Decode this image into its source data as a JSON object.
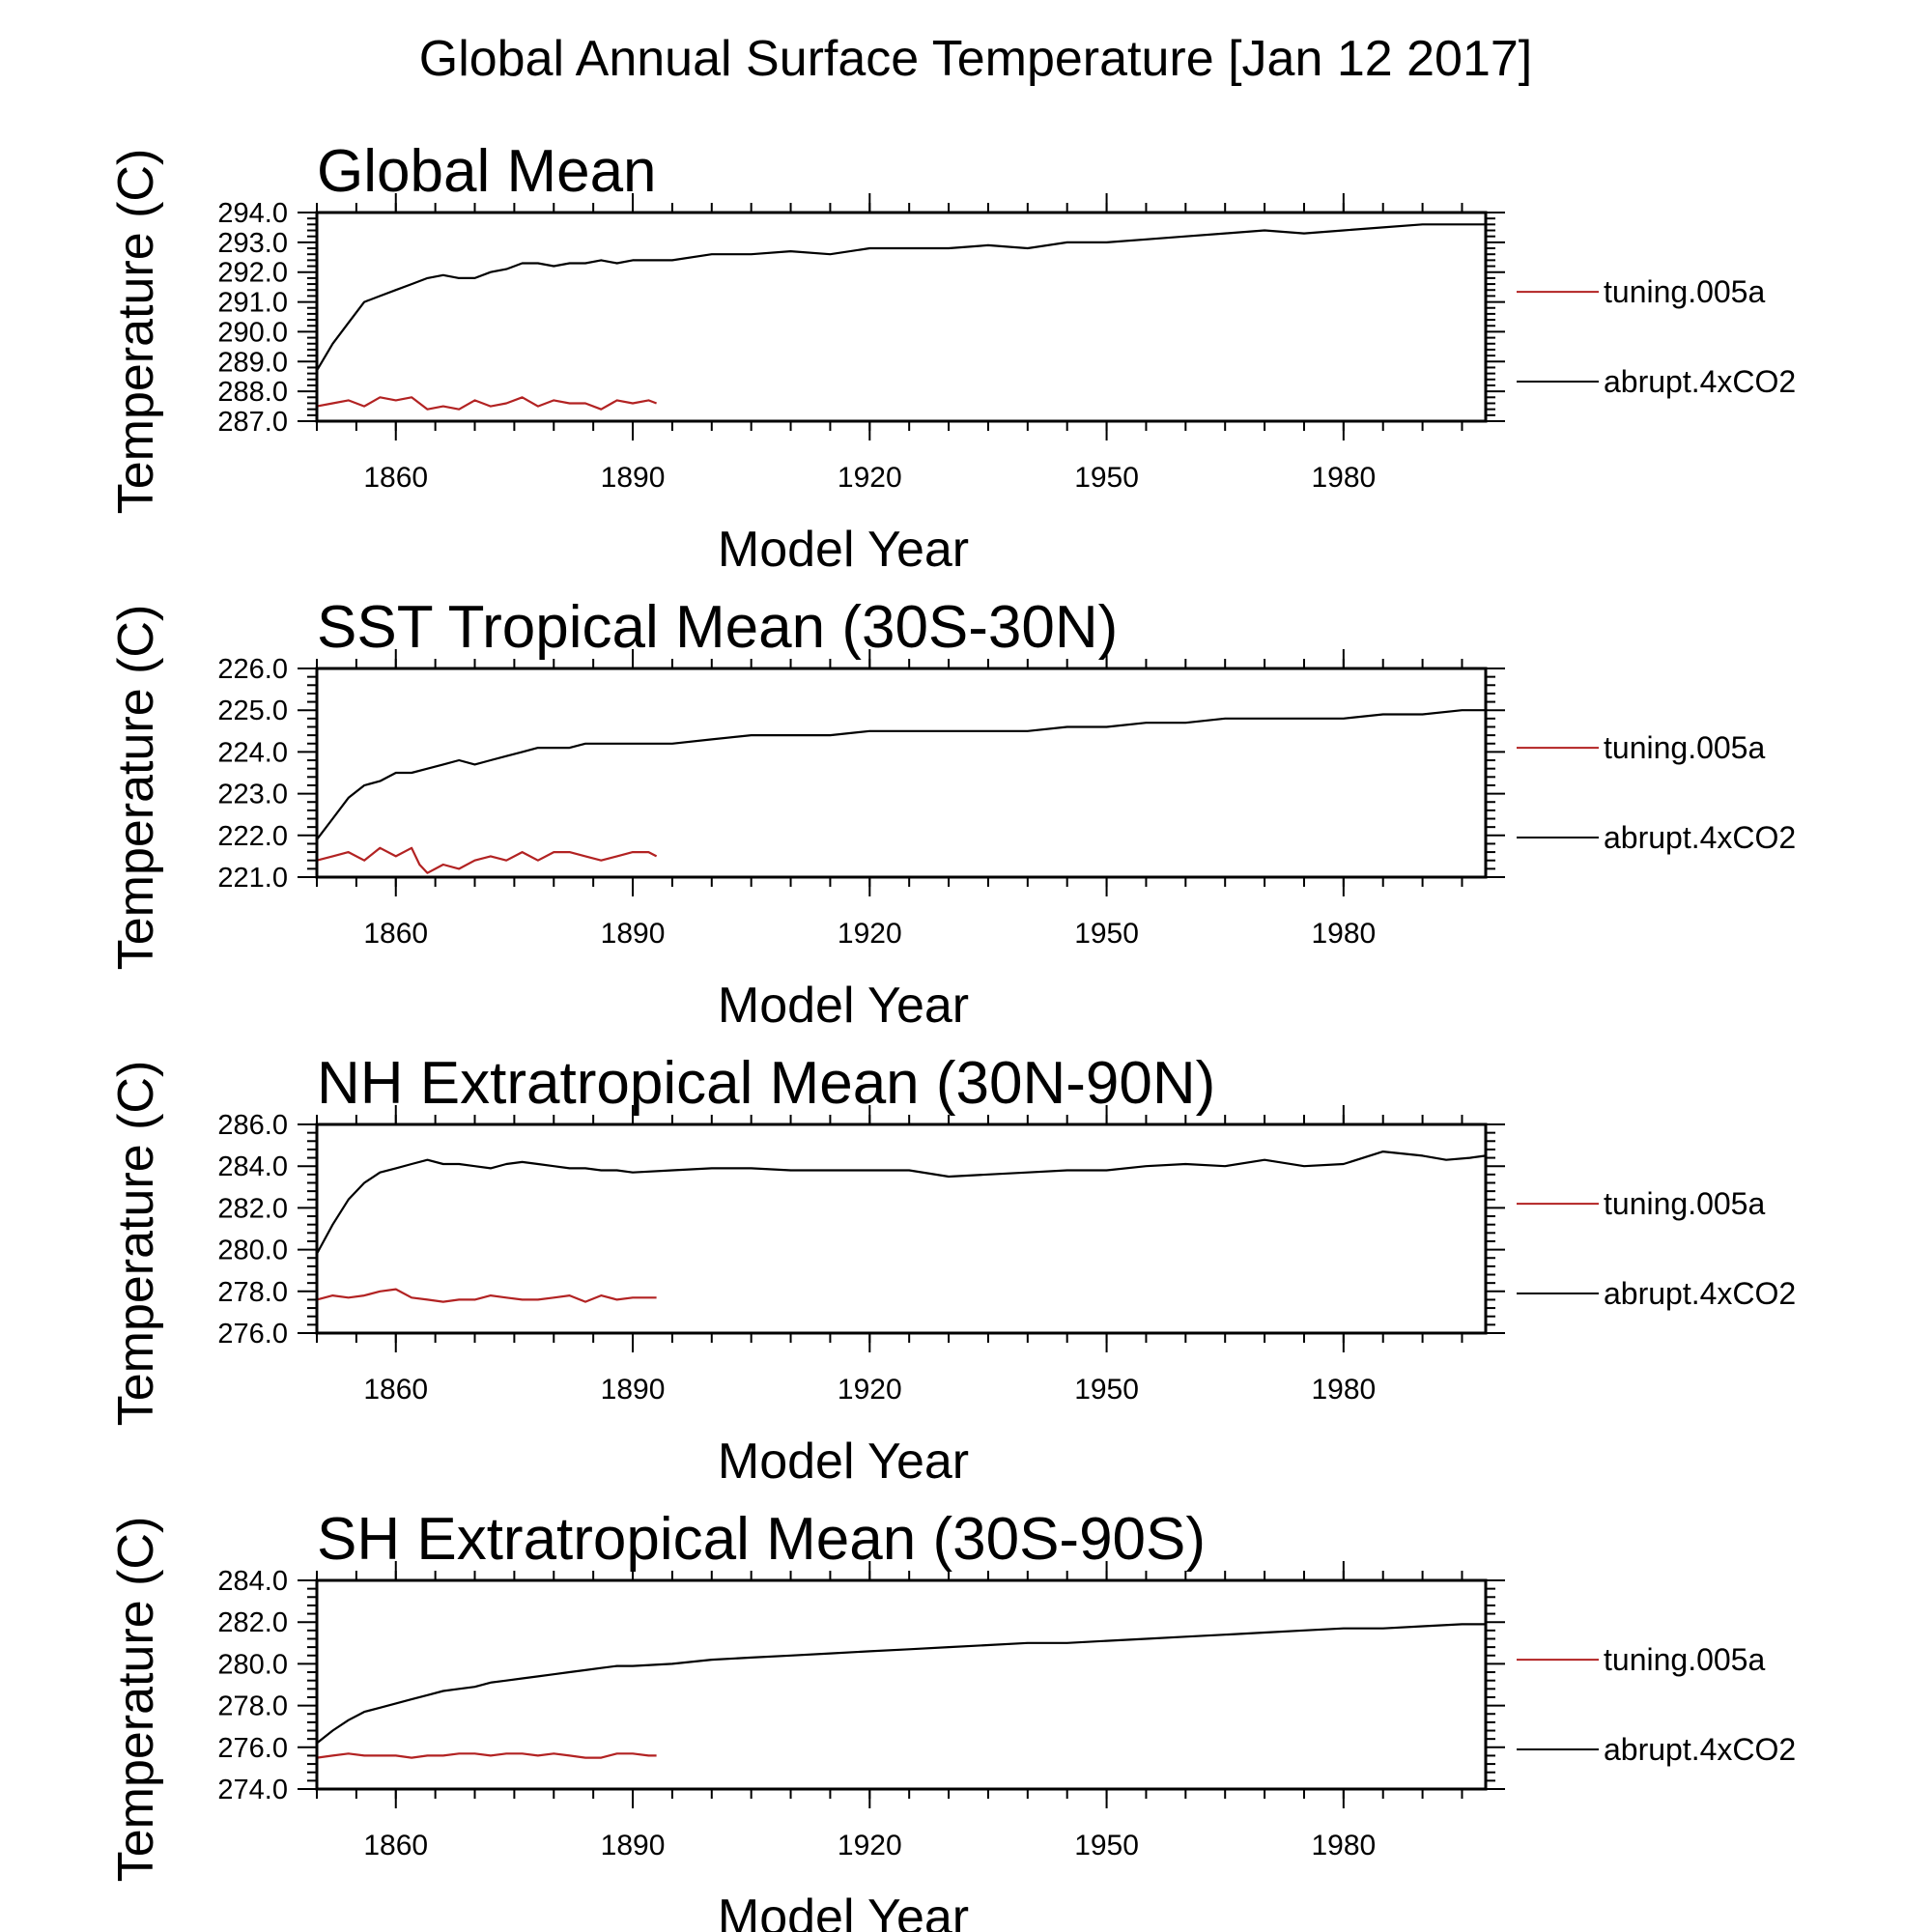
{
  "figure": {
    "title": "Global Annual Surface Temperature [Jan 12 2017]"
  },
  "chart_data": [
    {
      "type": "line",
      "title": "Global Mean",
      "xlabel": "Model Year",
      "ylabel": "Temperature (C)",
      "xlim": [
        1850,
        1998
      ],
      "ylim": [
        287.0,
        294.0
      ],
      "xticks": [
        1860,
        1890,
        1920,
        1950,
        1980
      ],
      "xtick_labels": [
        "1860",
        "1890",
        "1920",
        "1950",
        "1980"
      ],
      "yticks": [
        287.0,
        288.0,
        289.0,
        290.0,
        291.0,
        292.0,
        293.0,
        294.0
      ],
      "ytick_labels": [
        "287.0",
        "288.0",
        "289.0",
        "290.0",
        "291.0",
        "292.0",
        "293.0",
        "294.0"
      ],
      "legend_position": "right",
      "series": [
        {
          "name": "tuning.005a",
          "color": "#b22222",
          "x": [
            1850,
            1852,
            1854,
            1856,
            1858,
            1860,
            1862,
            1864,
            1866,
            1868,
            1870,
            1872,
            1874,
            1876,
            1878,
            1880,
            1882,
            1884,
            1886,
            1888,
            1890,
            1892,
            1893
          ],
          "y": [
            287.5,
            287.6,
            287.7,
            287.5,
            287.8,
            287.7,
            287.8,
            287.4,
            287.5,
            287.4,
            287.7,
            287.5,
            287.6,
            287.8,
            287.5,
            287.7,
            287.6,
            287.6,
            287.4,
            287.7,
            287.6,
            287.7,
            287.6
          ]
        },
        {
          "name": "abrupt.4xCO2",
          "color": "#000000",
          "x": [
            1850,
            1852,
            1854,
            1856,
            1858,
            1860,
            1862,
            1864,
            1866,
            1868,
            1870,
            1872,
            1874,
            1876,
            1878,
            1880,
            1882,
            1884,
            1886,
            1888,
            1890,
            1895,
            1900,
            1905,
            1910,
            1915,
            1920,
            1925,
            1930,
            1935,
            1940,
            1945,
            1950,
            1955,
            1960,
            1965,
            1970,
            1975,
            1980,
            1985,
            1990,
            1995,
            1998
          ],
          "y": [
            288.7,
            289.6,
            290.3,
            291.0,
            291.2,
            291.4,
            291.6,
            291.8,
            291.9,
            291.8,
            291.8,
            292.0,
            292.1,
            292.3,
            292.3,
            292.2,
            292.3,
            292.3,
            292.4,
            292.3,
            292.4,
            292.4,
            292.6,
            292.6,
            292.7,
            292.6,
            292.8,
            292.8,
            292.8,
            292.9,
            292.8,
            293.0,
            293.0,
            293.1,
            293.2,
            293.3,
            293.4,
            293.3,
            293.4,
            293.5,
            293.6,
            293.6,
            293.6
          ]
        }
      ]
    },
    {
      "type": "line",
      "title": "SST Tropical Mean (30S-30N)",
      "xlabel": "Model Year",
      "ylabel": "Temperature (C)",
      "xlim": [
        1850,
        1998
      ],
      "ylim": [
        221.0,
        226.0
      ],
      "xticks": [
        1860,
        1890,
        1920,
        1950,
        1980
      ],
      "xtick_labels": [
        "1860",
        "1890",
        "1920",
        "1950",
        "1980"
      ],
      "yticks": [
        221.0,
        222.0,
        223.0,
        224.0,
        225.0,
        226.0
      ],
      "ytick_labels": [
        "221.0",
        "222.0",
        "223.0",
        "224.0",
        "225.0",
        "226.0"
      ],
      "legend_position": "right",
      "series": [
        {
          "name": "tuning.005a",
          "color": "#b22222",
          "x": [
            1850,
            1852,
            1854,
            1856,
            1858,
            1860,
            1862,
            1863,
            1864,
            1866,
            1868,
            1870,
            1872,
            1874,
            1876,
            1878,
            1880,
            1882,
            1884,
            1886,
            1888,
            1890,
            1892,
            1893
          ],
          "y": [
            221.4,
            221.5,
            221.6,
            221.4,
            221.7,
            221.5,
            221.7,
            221.3,
            221.1,
            221.3,
            221.2,
            221.4,
            221.5,
            221.4,
            221.6,
            221.4,
            221.6,
            221.6,
            221.5,
            221.4,
            221.5,
            221.6,
            221.6,
            221.5
          ]
        },
        {
          "name": "abrupt.4xCO2",
          "color": "#000000",
          "x": [
            1850,
            1852,
            1854,
            1856,
            1858,
            1860,
            1862,
            1864,
            1866,
            1868,
            1870,
            1872,
            1874,
            1876,
            1878,
            1880,
            1882,
            1884,
            1886,
            1888,
            1890,
            1895,
            1900,
            1905,
            1910,
            1915,
            1920,
            1925,
            1930,
            1935,
            1940,
            1945,
            1950,
            1955,
            1960,
            1965,
            1970,
            1975,
            1980,
            1985,
            1990,
            1995,
            1998
          ],
          "y": [
            221.9,
            222.4,
            222.9,
            223.2,
            223.3,
            223.5,
            223.5,
            223.6,
            223.7,
            223.8,
            223.7,
            223.8,
            223.9,
            224.0,
            224.1,
            224.1,
            224.1,
            224.2,
            224.2,
            224.2,
            224.2,
            224.2,
            224.3,
            224.4,
            224.4,
            224.4,
            224.5,
            224.5,
            224.5,
            224.5,
            224.5,
            224.6,
            224.6,
            224.7,
            224.7,
            224.8,
            224.8,
            224.8,
            224.8,
            224.9,
            224.9,
            225.0,
            225.0
          ]
        }
      ]
    },
    {
      "type": "line",
      "title": "NH Extratropical Mean (30N-90N)",
      "xlabel": "Model Year",
      "ylabel": "Temperature (C)",
      "xlim": [
        1850,
        1998
      ],
      "ylim": [
        276.0,
        286.0
      ],
      "xticks": [
        1860,
        1890,
        1920,
        1950,
        1980
      ],
      "xtick_labels": [
        "1860",
        "1890",
        "1920",
        "1950",
        "1980"
      ],
      "yticks": [
        276.0,
        278.0,
        280.0,
        282.0,
        284.0,
        286.0
      ],
      "ytick_labels": [
        "276.0",
        "278.0",
        "280.0",
        "282.0",
        "284.0",
        "286.0"
      ],
      "legend_position": "right",
      "series": [
        {
          "name": "tuning.005a",
          "color": "#b22222",
          "x": [
            1850,
            1852,
            1854,
            1856,
            1858,
            1860,
            1862,
            1864,
            1866,
            1868,
            1870,
            1872,
            1874,
            1876,
            1878,
            1880,
            1882,
            1884,
            1886,
            1888,
            1890,
            1892,
            1893
          ],
          "y": [
            277.6,
            277.8,
            277.7,
            277.8,
            278.0,
            278.1,
            277.7,
            277.6,
            277.5,
            277.6,
            277.6,
            277.8,
            277.7,
            277.6,
            277.6,
            277.7,
            277.8,
            277.5,
            277.8,
            277.6,
            277.7,
            277.7,
            277.7
          ]
        },
        {
          "name": "abrupt.4xCO2",
          "color": "#000000",
          "x": [
            1850,
            1852,
            1854,
            1856,
            1858,
            1860,
            1862,
            1864,
            1866,
            1868,
            1870,
            1872,
            1874,
            1876,
            1878,
            1880,
            1882,
            1884,
            1886,
            1888,
            1890,
            1895,
            1900,
            1905,
            1910,
            1915,
            1920,
            1925,
            1930,
            1935,
            1940,
            1945,
            1950,
            1955,
            1960,
            1965,
            1970,
            1975,
            1980,
            1985,
            1990,
            1993,
            1996,
            1998
          ],
          "y": [
            279.8,
            281.2,
            282.4,
            283.2,
            283.7,
            283.9,
            284.1,
            284.3,
            284.1,
            284.1,
            284.0,
            283.9,
            284.1,
            284.2,
            284.1,
            284.0,
            283.9,
            283.9,
            283.8,
            283.8,
            283.7,
            283.8,
            283.9,
            283.9,
            283.8,
            283.8,
            283.8,
            283.8,
            283.5,
            283.6,
            283.7,
            283.8,
            283.8,
            284.0,
            284.1,
            284.0,
            284.3,
            284.0,
            284.1,
            284.7,
            284.5,
            284.3,
            284.4,
            284.5
          ]
        }
      ]
    },
    {
      "type": "line",
      "title": "SH Extratropical Mean (30S-90S)",
      "xlabel": "Model Year",
      "ylabel": "Temperature (C)",
      "xlim": [
        1850,
        1998
      ],
      "ylim": [
        274.0,
        284.0
      ],
      "xticks": [
        1860,
        1890,
        1920,
        1950,
        1980
      ],
      "xtick_labels": [
        "1860",
        "1890",
        "1920",
        "1950",
        "1980"
      ],
      "yticks": [
        274.0,
        276.0,
        278.0,
        280.0,
        282.0,
        284.0
      ],
      "ytick_labels": [
        "274.0",
        "276.0",
        "278.0",
        "280.0",
        "282.0",
        "284.0"
      ],
      "legend_position": "right",
      "series": [
        {
          "name": "tuning.005a",
          "color": "#b22222",
          "x": [
            1850,
            1852,
            1854,
            1856,
            1858,
            1860,
            1862,
            1864,
            1866,
            1868,
            1870,
            1872,
            1874,
            1876,
            1878,
            1880,
            1882,
            1884,
            1886,
            1888,
            1890,
            1892,
            1893
          ],
          "y": [
            275.5,
            275.6,
            275.7,
            275.6,
            275.6,
            275.6,
            275.5,
            275.6,
            275.6,
            275.7,
            275.7,
            275.6,
            275.7,
            275.7,
            275.6,
            275.7,
            275.6,
            275.5,
            275.5,
            275.7,
            275.7,
            275.6,
            275.6
          ]
        },
        {
          "name": "abrupt.4xCO2",
          "color": "#000000",
          "x": [
            1850,
            1852,
            1854,
            1856,
            1858,
            1860,
            1862,
            1864,
            1866,
            1868,
            1870,
            1872,
            1874,
            1876,
            1878,
            1880,
            1882,
            1884,
            1886,
            1888,
            1890,
            1895,
            1900,
            1905,
            1910,
            1915,
            1920,
            1925,
            1930,
            1935,
            1940,
            1945,
            1950,
            1955,
            1960,
            1965,
            1970,
            1975,
            1980,
            1985,
            1990,
            1995,
            1998
          ],
          "y": [
            276.2,
            276.8,
            277.3,
            277.7,
            277.9,
            278.1,
            278.3,
            278.5,
            278.7,
            278.8,
            278.9,
            279.1,
            279.2,
            279.3,
            279.4,
            279.5,
            279.6,
            279.7,
            279.8,
            279.9,
            279.9,
            280.0,
            280.2,
            280.3,
            280.4,
            280.5,
            280.6,
            280.7,
            280.8,
            280.9,
            281.0,
            281.0,
            281.1,
            281.2,
            281.3,
            281.4,
            281.5,
            281.6,
            281.7,
            281.7,
            281.8,
            281.9,
            281.9
          ]
        }
      ]
    }
  ]
}
